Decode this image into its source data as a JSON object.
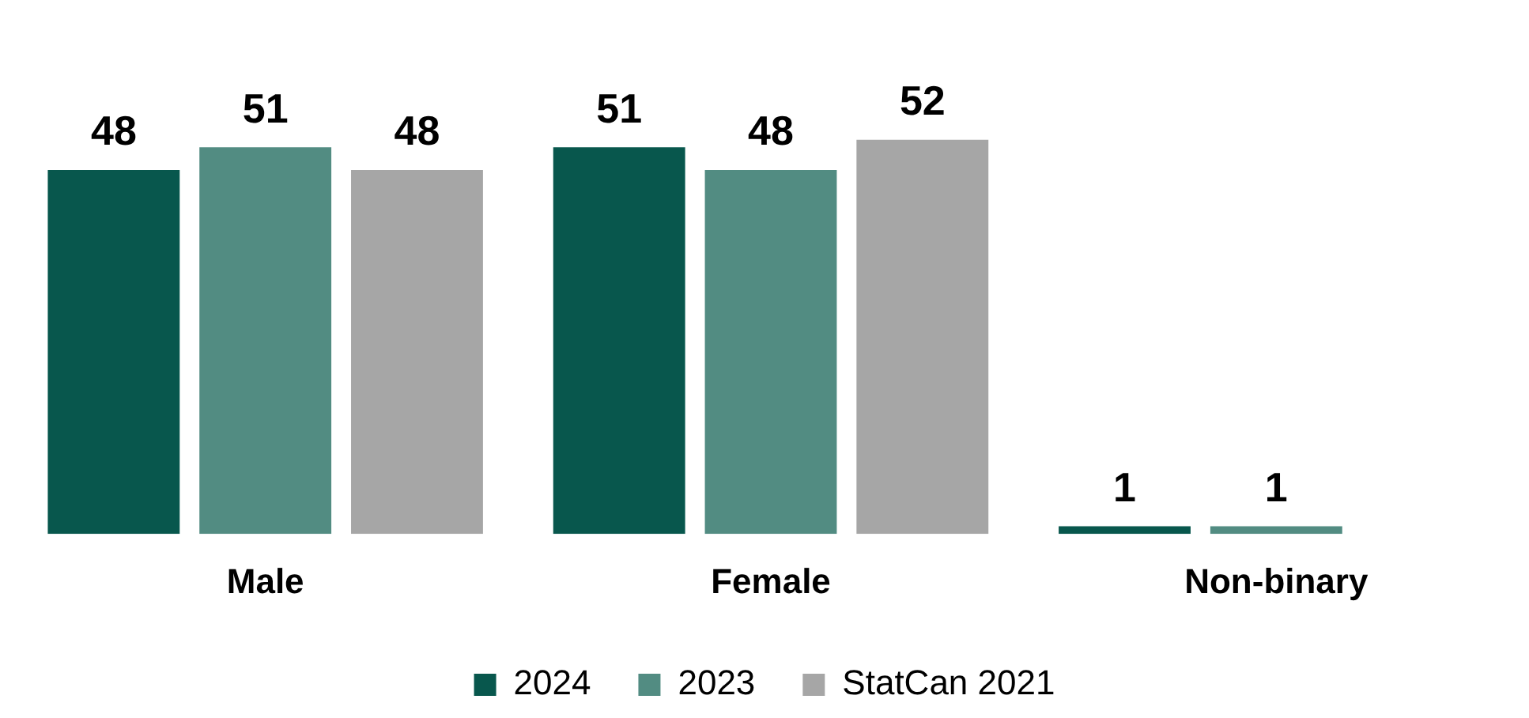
{
  "chart_data": {
    "type": "bar",
    "categories": [
      "Male",
      "Female",
      "Non-binary"
    ],
    "series": [
      {
        "name": "2024",
        "color": "#08574d",
        "values": [
          48,
          51,
          1
        ]
      },
      {
        "name": "2023",
        "color": "#528c82",
        "values": [
          51,
          48,
          1
        ]
      },
      {
        "name": "StatCan 2021",
        "color": "#a6a6a6",
        "values": [
          48,
          52,
          null
        ]
      }
    ],
    "relative": false,
    "data_labels": true,
    "legend": "bottom",
    "grid": false
  }
}
